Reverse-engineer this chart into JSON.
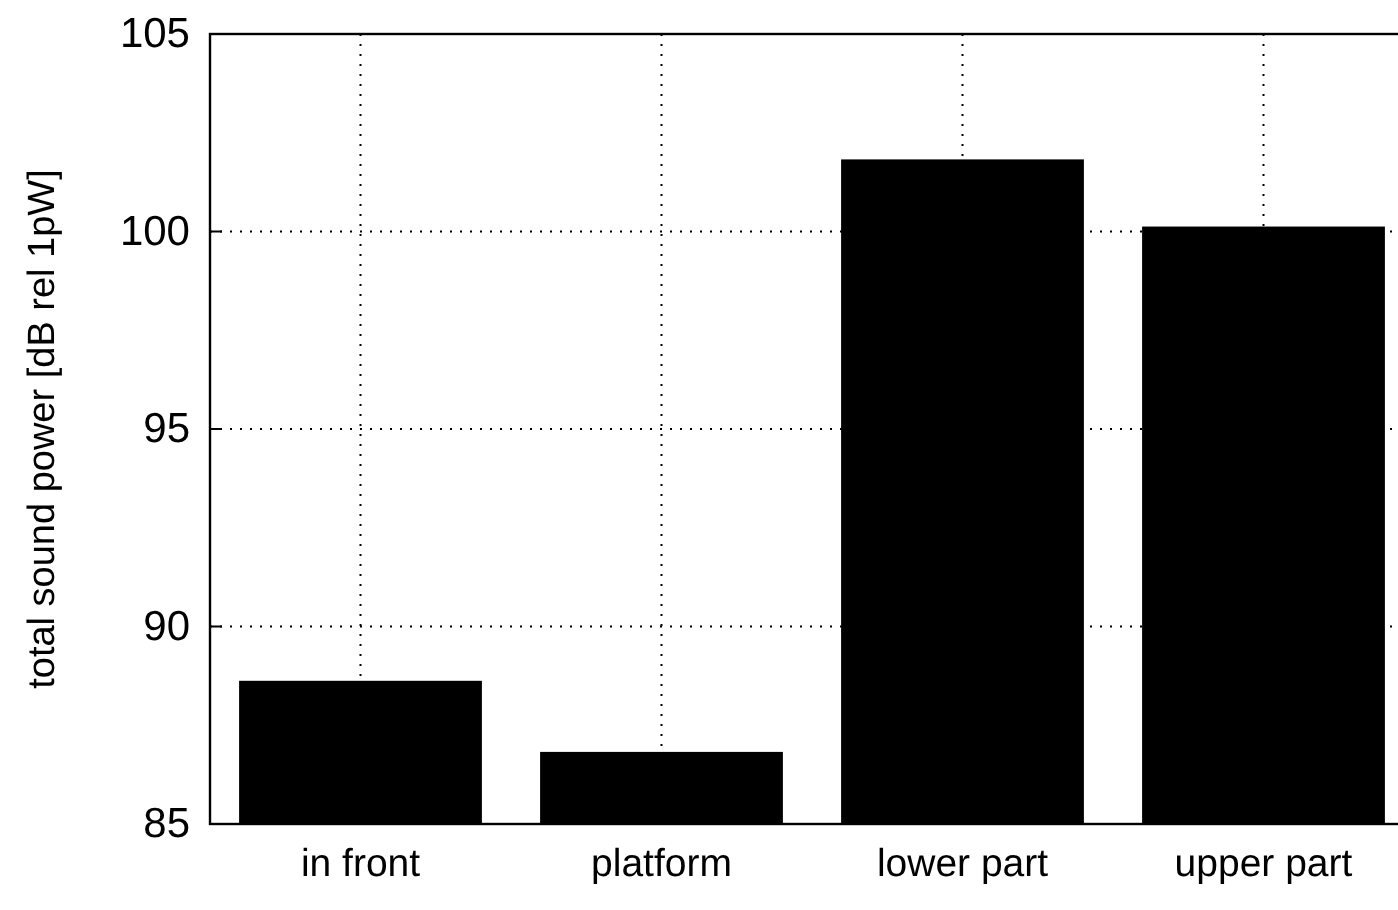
{
  "chart_data": {
    "type": "bar",
    "ylabel": "total sound power [dB rel 1pW]",
    "categories": [
      "in front",
      "platform",
      "lower part",
      "upper part"
    ],
    "values": [
      88.6,
      86.8,
      101.8,
      100.1
    ],
    "color": "#000000",
    "ylim": [
      85,
      105
    ],
    "yticks": [
      85,
      90,
      95,
      100,
      105
    ],
    "grid": true
  }
}
